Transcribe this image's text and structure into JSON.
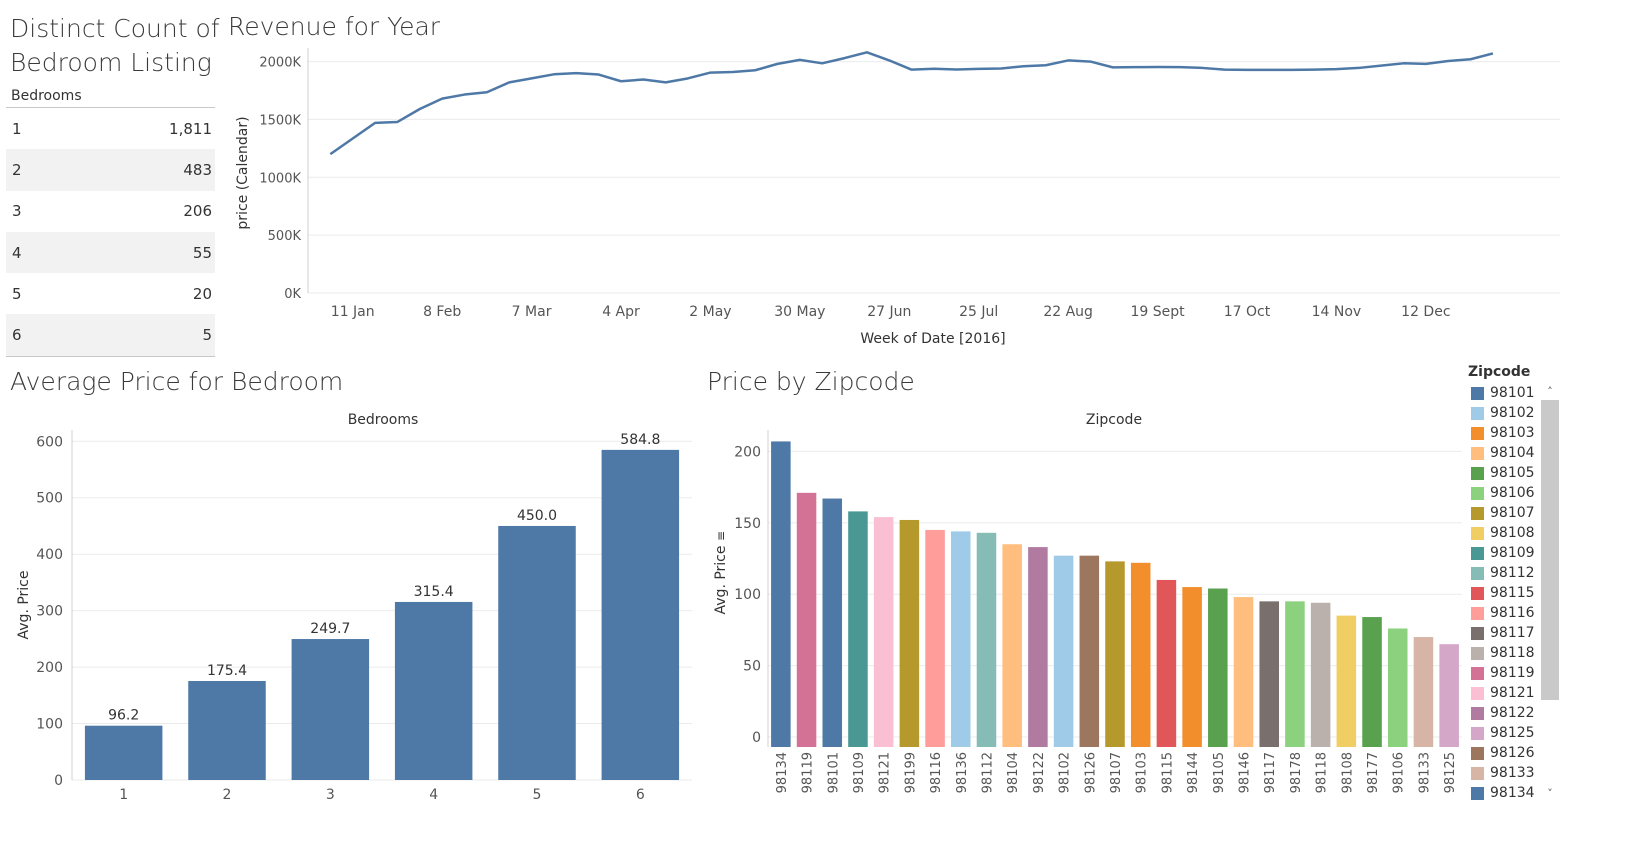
{
  "titles": {
    "bedroom_count": "Distinct Count of Bedroom Listing",
    "revenue": "Revenue for Year",
    "avg_price": "Average Price for Bedroom",
    "price_zip": "Price by Zipcode"
  },
  "bedroom_table": {
    "header": "Bedrooms",
    "rows": [
      {
        "bedrooms": "1",
        "count": "1,811"
      },
      {
        "bedrooms": "2",
        "count": "483"
      },
      {
        "bedrooms": "3",
        "count": "206"
      },
      {
        "bedrooms": "4",
        "count": "55"
      },
      {
        "bedrooms": "5",
        "count": "20"
      },
      {
        "bedrooms": "6",
        "count": "5"
      }
    ]
  },
  "colors": {
    "primary": "#4e79a7",
    "text": "#333333",
    "grid": "#ebebeb"
  },
  "chart_data": [
    {
      "id": "revenue",
      "type": "line",
      "title": "Revenue for Year",
      "xlabel": "Week of Date [2016]",
      "ylabel": "price (Calendar)",
      "ylim": [
        0,
        2100000
      ],
      "yticks": [
        0,
        500000,
        1000000,
        1500000,
        2000000
      ],
      "ytick_labels": [
        "0K",
        "500K",
        "1000K",
        "1500K",
        "2000K"
      ],
      "xtick_labels": [
        "11 Jan",
        "8 Feb",
        "7 Mar",
        "4 Apr",
        "2 May",
        "30 May",
        "27 Jun",
        "25 Jul",
        "22 Aug",
        "19 Sept",
        "17 Oct",
        "14 Nov",
        "12 Dec"
      ],
      "xtick_weeks": [
        1,
        5,
        9,
        13,
        17,
        21,
        25,
        29,
        33,
        37,
        41,
        45,
        49
      ],
      "series": [
        {
          "name": "price",
          "weeks": [
            0,
            1,
            2,
            3,
            4,
            5,
            6,
            7,
            8,
            9,
            10,
            11,
            12,
            13,
            14,
            15,
            16,
            17,
            18,
            19,
            20,
            21,
            22,
            23,
            24,
            25,
            26,
            27,
            28,
            29,
            30,
            31,
            32,
            33,
            34,
            35,
            36,
            37,
            38,
            39,
            40,
            41,
            42,
            43,
            44,
            45,
            46,
            47,
            48,
            49,
            50,
            51,
            52
          ],
          "values": [
            1200000,
            1335000,
            1470000,
            1478000,
            1590000,
            1680000,
            1715000,
            1735000,
            1820000,
            1855000,
            1890000,
            1900000,
            1888000,
            1830000,
            1845000,
            1820000,
            1855000,
            1905000,
            1910000,
            1925000,
            1980000,
            2015000,
            1985000,
            2030000,
            2080000,
            2010000,
            1930000,
            1938000,
            1932000,
            1937000,
            1940000,
            1960000,
            1968000,
            2010000,
            2000000,
            1950000,
            1952000,
            1953000,
            1952000,
            1945000,
            1930000,
            1928000,
            1928000,
            1928000,
            1930000,
            1935000,
            1945000,
            1965000,
            1985000,
            1980000,
            2005000,
            2020000,
            2070000
          ]
        }
      ]
    },
    {
      "id": "avg_price",
      "type": "bar",
      "title": "Average Price for Bedroom",
      "header": "Bedrooms",
      "ylabel": "Avg. Price",
      "categories": [
        "1",
        "2",
        "3",
        "4",
        "5",
        "6"
      ],
      "values": [
        96.2,
        175.4,
        249.7,
        315.4,
        450.0,
        584.8
      ],
      "labels": [
        "96.2",
        "175.4",
        "249.7",
        "315.4",
        "450.0",
        "584.8"
      ],
      "ylim": [
        0,
        620
      ],
      "yticks": [
        0,
        100,
        200,
        300,
        400,
        500,
        600
      ]
    },
    {
      "id": "price_zip",
      "type": "bar",
      "title": "Price by Zipcode",
      "header": "Zipcode",
      "ylabel": "Avg. Price",
      "categories": [
        "98134",
        "98119",
        "98101",
        "98109",
        "98121",
        "98199",
        "98116",
        "98136",
        "98112",
        "98104",
        "98122",
        "98102",
        "98126",
        "98107",
        "98103",
        "98115",
        "98144",
        "98105",
        "98146",
        "98117",
        "98178",
        "98118",
        "98108",
        "98177",
        "98106",
        "98133",
        "98125"
      ],
      "values": [
        207,
        171,
        167,
        158,
        154,
        152,
        145,
        144,
        143,
        135,
        133,
        127,
        127,
        123,
        122,
        110,
        105,
        104,
        98,
        95,
        95,
        94,
        85,
        84,
        76,
        70,
        65
      ],
      "ylim": [
        -7,
        215
      ],
      "yticks": [
        0,
        50,
        100,
        150,
        200
      ]
    }
  ],
  "zip_legend": {
    "title": "Zipcode",
    "items": [
      {
        "label": "98101",
        "color": "#4e79a7"
      },
      {
        "label": "98102",
        "color": "#a0cbe8"
      },
      {
        "label": "98103",
        "color": "#f28e2b"
      },
      {
        "label": "98104",
        "color": "#ffbe7d"
      },
      {
        "label": "98105",
        "color": "#59a14f"
      },
      {
        "label": "98106",
        "color": "#8cd17d"
      },
      {
        "label": "98107",
        "color": "#b6992d"
      },
      {
        "label": "98108",
        "color": "#f1ce63"
      },
      {
        "label": "98109",
        "color": "#499894"
      },
      {
        "label": "98112",
        "color": "#86bcb6"
      },
      {
        "label": "98115",
        "color": "#e15759"
      },
      {
        "label": "98116",
        "color": "#ff9d9a"
      },
      {
        "label": "98117",
        "color": "#79706e"
      },
      {
        "label": "98118",
        "color": "#bab0ac"
      },
      {
        "label": "98119",
        "color": "#d37295"
      },
      {
        "label": "98121",
        "color": "#fabfd2"
      },
      {
        "label": "98122",
        "color": "#b07aa1"
      },
      {
        "label": "98125",
        "color": "#d4a6c8"
      },
      {
        "label": "98126",
        "color": "#9d7660"
      },
      {
        "label": "98133",
        "color": "#d7b5a6"
      },
      {
        "label": "98134",
        "color": "#4e79a7"
      }
    ],
    "extra_colors": {
      "98136": "#a0cbe8",
      "98144": "#f28e2b",
      "98146": "#ffbe7d",
      "98177": "#59a14f",
      "98178": "#8cd17d",
      "98199": "#b6992d"
    }
  }
}
